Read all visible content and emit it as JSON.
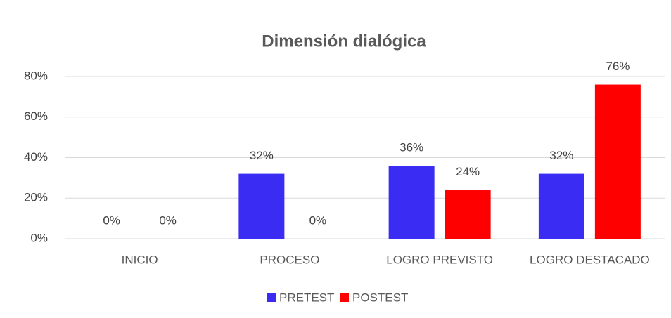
{
  "chart_data": {
    "type": "bar",
    "title": "Dimensión dialógica",
    "categories": [
      "INICIO",
      "PROCESO",
      "LOGRO PREVISTO",
      "LOGRO DESTACADO"
    ],
    "series": [
      {
        "name": "PRETEST",
        "color": "#3a2cf2",
        "values": [
          0,
          32,
          36,
          32
        ],
        "value_labels": [
          "0%",
          "32%",
          "36%",
          "32%"
        ]
      },
      {
        "name": "POSTEST",
        "color": "#ff0000",
        "values": [
          0,
          0,
          24,
          76
        ],
        "value_labels": [
          "0%",
          "0%",
          "24%",
          "76%"
        ]
      }
    ],
    "ylim": [
      0,
      80
    ],
    "yticks": [
      {
        "value": 0,
        "label": "0%"
      },
      {
        "value": 20,
        "label": "20%"
      },
      {
        "value": 40,
        "label": "40%"
      },
      {
        "value": 60,
        "label": "60%"
      },
      {
        "value": 80,
        "label": "80%"
      }
    ],
    "grid": true,
    "legend": "bottom"
  }
}
